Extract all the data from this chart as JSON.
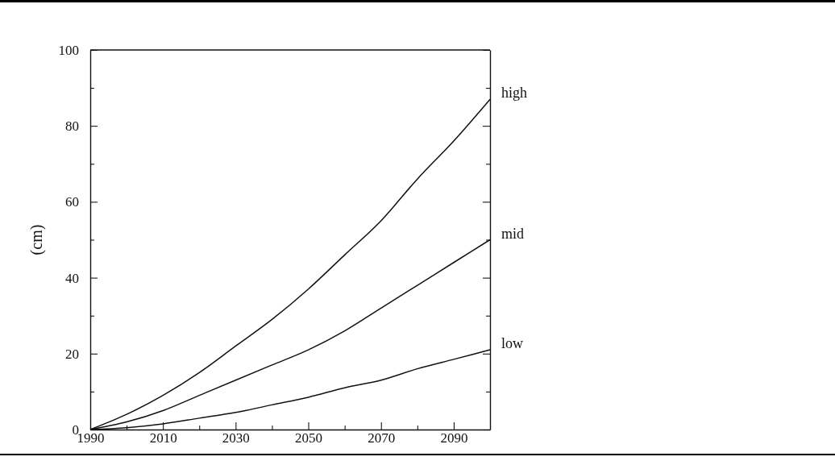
{
  "chart_data": {
    "type": "line",
    "ylabel": "(cm)",
    "x": [
      1990,
      2000,
      2010,
      2020,
      2030,
      2040,
      2050,
      2060,
      2070,
      2080,
      2090,
      2100
    ],
    "series": [
      {
        "name": "high",
        "color": "#111111",
        "values": [
          0,
          4,
          9,
          15,
          22,
          29,
          37,
          46,
          55,
          66,
          76,
          87
        ]
      },
      {
        "name": "mid",
        "color": "#111111",
        "values": [
          0,
          2,
          5,
          9,
          13,
          17,
          21,
          26,
          32,
          38,
          44,
          50
        ]
      },
      {
        "name": "low",
        "color": "#111111",
        "values": [
          0,
          0.5,
          1.5,
          3,
          4.5,
          6.5,
          8.5,
          11,
          13,
          16,
          18.5,
          21
        ]
      }
    ],
    "xlim": [
      1990,
      2100
    ],
    "xticks": [
      1990,
      {
        "value": 2000,
        "label": null
      },
      2010,
      {
        "value": 2020,
        "label": null
      },
      2030,
      {
        "value": 2040,
        "label": null
      },
      2050,
      {
        "value": 2060,
        "label": null
      },
      2070,
      {
        "value": 2080,
        "label": null
      },
      2090,
      {
        "value": 2100,
        "label": null
      }
    ],
    "ylim": [
      0,
      100
    ],
    "yticks": [
      0,
      {
        "value": 10,
        "label": null
      },
      20,
      {
        "value": 30,
        "label": null
      },
      40,
      {
        "value": 50,
        "label": null
      },
      60,
      {
        "value": 70,
        "label": null
      },
      80,
      {
        "value": 90,
        "label": null
      },
      100
    ],
    "grid": false,
    "legend": false,
    "marker": "none",
    "line_style": "solid"
  }
}
